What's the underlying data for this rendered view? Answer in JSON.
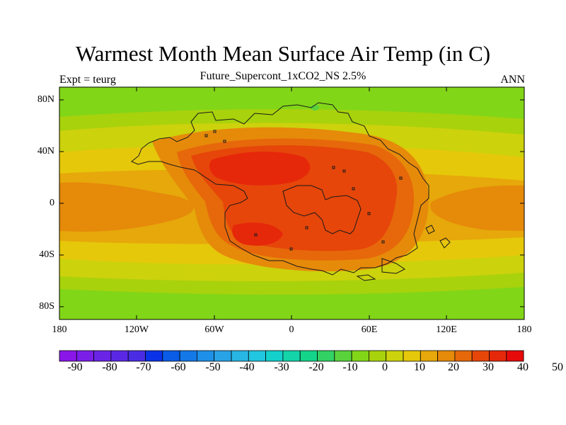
{
  "map": {
    "title": "Warmest Month Mean Surface Air Temp (in C)",
    "subtitle": "Future_Supercont_1xCO2_NS 2.5%",
    "left_label": "Expt = teurg",
    "right_label": "ANN",
    "lat_ticks": [
      "80N",
      "40N",
      "0",
      "40S",
      "80S"
    ],
    "lon_ticks": [
      "180",
      "120W",
      "60W",
      "0",
      "60E",
      "120E",
      "180"
    ]
  },
  "colorbar": {
    "labels": [
      "-90",
      "-80",
      "-70",
      "-60",
      "-50",
      "-40",
      "-30",
      "-20",
      "-10",
      "0",
      "10",
      "20",
      "30",
      "40",
      "50"
    ],
    "colors": [
      "#8a16e8",
      "#7a1ee8",
      "#6a24e6",
      "#5a28e4",
      "#4a2ce4",
      "#0a32e6",
      "#0a5ce6",
      "#1478e6",
      "#1e90e8",
      "#28a4e6",
      "#28b6e4",
      "#22c6e0",
      "#14d0cc",
      "#14d4aa",
      "#14d48a",
      "#32d264",
      "#5ad23c",
      "#82d618",
      "#a8d20c",
      "#ccd20c",
      "#e6c80a",
      "#e6a80a",
      "#e68a0a",
      "#e6680a",
      "#e6460a",
      "#e6280a",
      "#e60a0a"
    ]
  },
  "chart_data": {
    "type": "heatmap",
    "title": "Warmest Month Mean Surface Air Temp (in C)",
    "subtitle": "Future_Supercont_1xCO2_NS 2.5%",
    "xlim": [
      -180,
      180
    ],
    "ylim": [
      -90,
      90
    ],
    "colorbar_range": [
      -95,
      55
    ],
    "contour_interval": 5,
    "approx_regions": [
      {
        "region": "polar bands",
        "value_C": 5
      },
      {
        "region": "mid-latitude ocean",
        "value_C": 20
      },
      {
        "region": "tropical ocean",
        "value_C": 30
      },
      {
        "region": "supercontinent interior",
        "value_C": 45
      }
    ]
  }
}
